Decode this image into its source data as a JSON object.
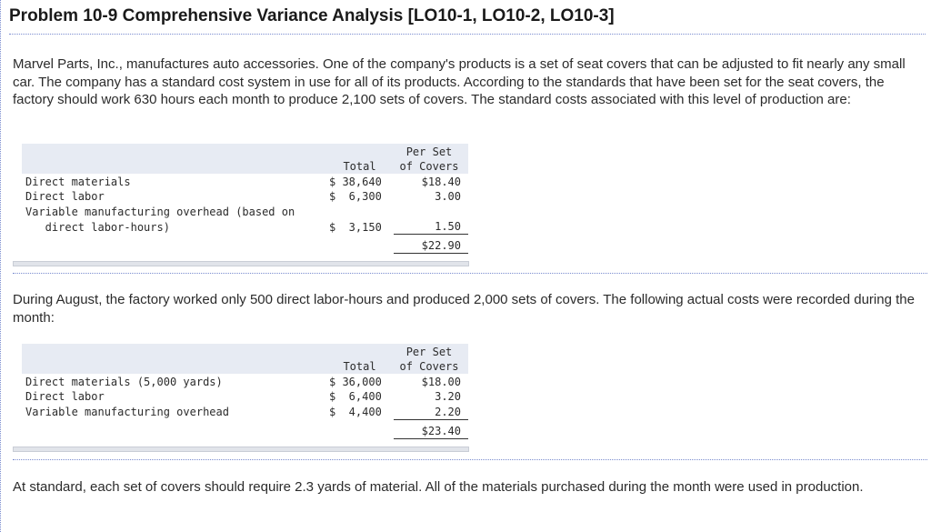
{
  "title": "Problem 10-9 Comprehensive Variance Analysis [LO10-1, LO10-2, LO10-3]",
  "intro": "Marvel Parts, Inc., manufactures auto accessories. One of the company's products is a set of seat covers that can be adjusted to fit nearly any small car. The company has a standard cost system in use for all of its products. According to the standards that have been set for the seat covers, the factory should work 630 hours each month to produce 2,100 sets of covers. The standard costs associated with this level of production are:",
  "standard_table": {
    "header_total": "Total",
    "header_per_set_1": "Per Set",
    "header_per_set_2": "of Covers",
    "rows": [
      {
        "label": "Direct materials",
        "total": "$ 38,640",
        "per_set": "$18.40"
      },
      {
        "label": "Direct labor",
        "total": "$  6,300",
        "per_set": "3.00"
      },
      {
        "label": "Variable manufacturing overhead (based on",
        "total": "",
        "per_set": ""
      },
      {
        "label": "   direct labor-hours)",
        "total": "$  3,150",
        "per_set": "1.50"
      }
    ],
    "total_per_set": "$22.90"
  },
  "august_text": "During August, the factory worked only 500 direct labor-hours and produced 2,000 sets of covers. The following actual costs were recorded during the month:",
  "actual_table": {
    "header_total": "Total",
    "header_per_set_1": "Per Set",
    "header_per_set_2": "of Covers",
    "rows": [
      {
        "label": "Direct materials (5,000 yards)",
        "total": "$ 36,000",
        "per_set": "$18.00"
      },
      {
        "label": "Direct labor",
        "total": "$  6,400",
        "per_set": "3.20"
      },
      {
        "label": "Variable manufacturing overhead",
        "total": "$  4,400",
        "per_set": "2.20"
      }
    ],
    "total_per_set": "$23.40"
  },
  "closing_text": "At standard, each set of covers should require 2.3 yards of material. All of the materials purchased during the month were used in production."
}
